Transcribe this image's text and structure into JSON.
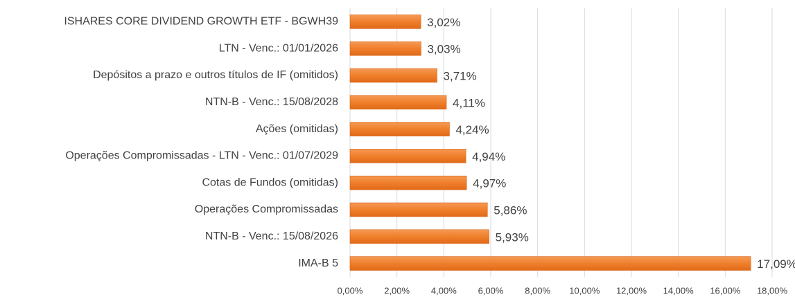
{
  "chart_data": {
    "type": "bar",
    "orientation": "horizontal",
    "categories": [
      "ISHARES CORE DIVIDEND GROWTH ETF - BGWH39",
      "LTN - Venc.: 01/01/2026",
      "Depósitos a prazo e outros títulos de IF (omitidos)",
      "NTN-B - Venc.: 15/08/2028",
      "Ações (omitidas)",
      "Operações Compromissadas - LTN - Venc.: 01/07/2029",
      "Cotas de Fundos (omitidas)",
      "Operações Compromissadas",
      "NTN-B - Venc.: 15/08/2026",
      "IMA-B 5"
    ],
    "values": [
      3.02,
      3.03,
      3.71,
      4.11,
      4.24,
      4.94,
      4.97,
      5.86,
      5.93,
      17.09
    ],
    "value_labels": [
      "3,02%",
      "3,03%",
      "3,71%",
      "4,11%",
      "4,24%",
      "4,94%",
      "4,97%",
      "5,86%",
      "5,93%",
      "17,09%"
    ],
    "color": "#f07f2c",
    "xlim": [
      0,
      18
    ],
    "xticks": [
      {
        "value": 0,
        "label": "0,00%"
      },
      {
        "value": 2,
        "label": "2,00%"
      },
      {
        "value": 4,
        "label": "4,00%"
      },
      {
        "value": 6,
        "label": "6,00%"
      },
      {
        "value": 8,
        "label": "8,00%"
      },
      {
        "value": 10,
        "label": "10,00%"
      },
      {
        "value": 12,
        "label": "12,00%"
      },
      {
        "value": 14,
        "label": "14,00%"
      },
      {
        "value": 16,
        "label": "16,00%"
      },
      {
        "value": 18,
        "label": "18,00%"
      }
    ],
    "grid": true
  }
}
